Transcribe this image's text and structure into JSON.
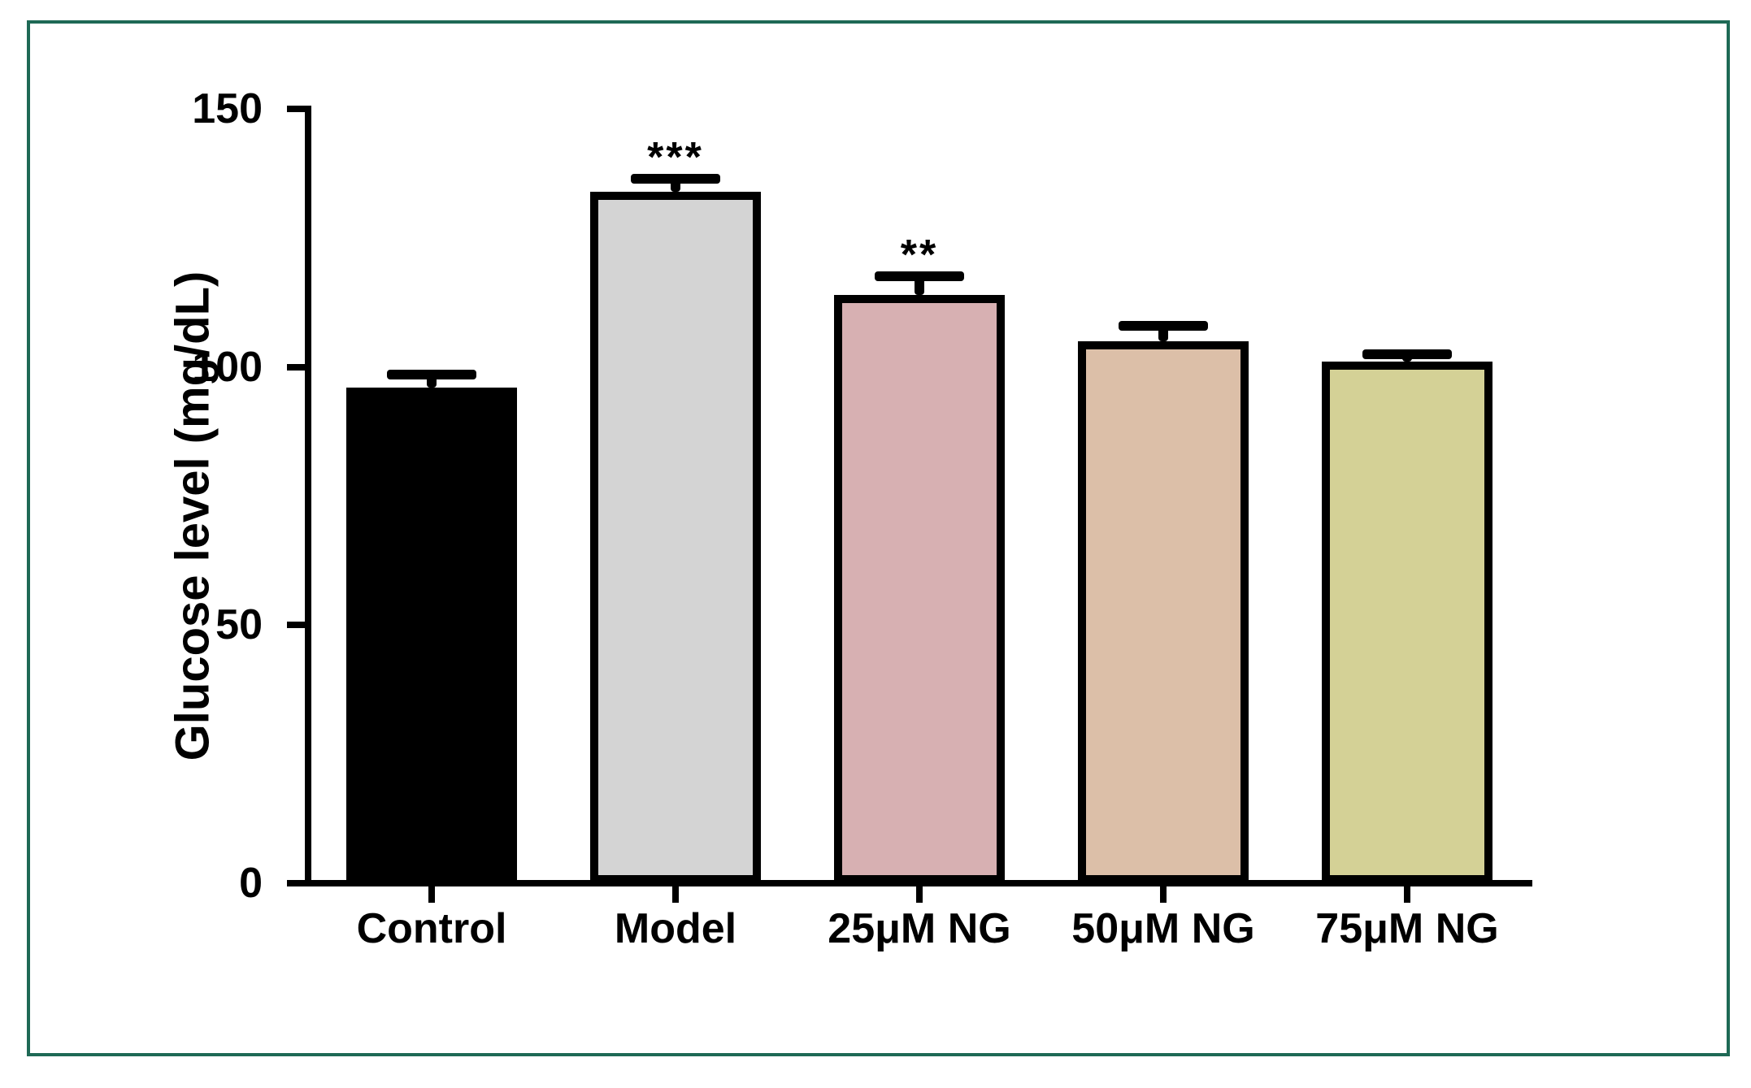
{
  "figure": {
    "frame_border_color": "#1e6955",
    "background_color": "#ffffff"
  },
  "chart_data": {
    "type": "bar",
    "title": "",
    "xlabel": "",
    "ylabel": "Glucose level (mg/dL)",
    "ylim": [
      0,
      150
    ],
    "yticks": [
      0,
      50,
      100,
      150
    ],
    "categories": [
      "Control",
      "Model",
      "25μM NG",
      "50μM NG",
      "75μM NG"
    ],
    "series": [
      {
        "name": "Glucose level (mg/dL)",
        "values": [
          96,
          134,
          114,
          105,
          101
        ],
        "errors_upper": [
          2.5,
          2.5,
          3.5,
          3,
          1.5
        ]
      }
    ],
    "significance_labels": [
      "",
      "***",
      "**",
      "",
      ""
    ],
    "bar_fill_colors": [
      "#000000",
      "#d4d4d4",
      "#d7b0b2",
      "#dcbfa8",
      "#d4d196"
    ],
    "bar_border_color": "#000000",
    "error_bar_color": "#000000",
    "axis_color": "#000000",
    "grid": false,
    "legend_position": "none"
  }
}
